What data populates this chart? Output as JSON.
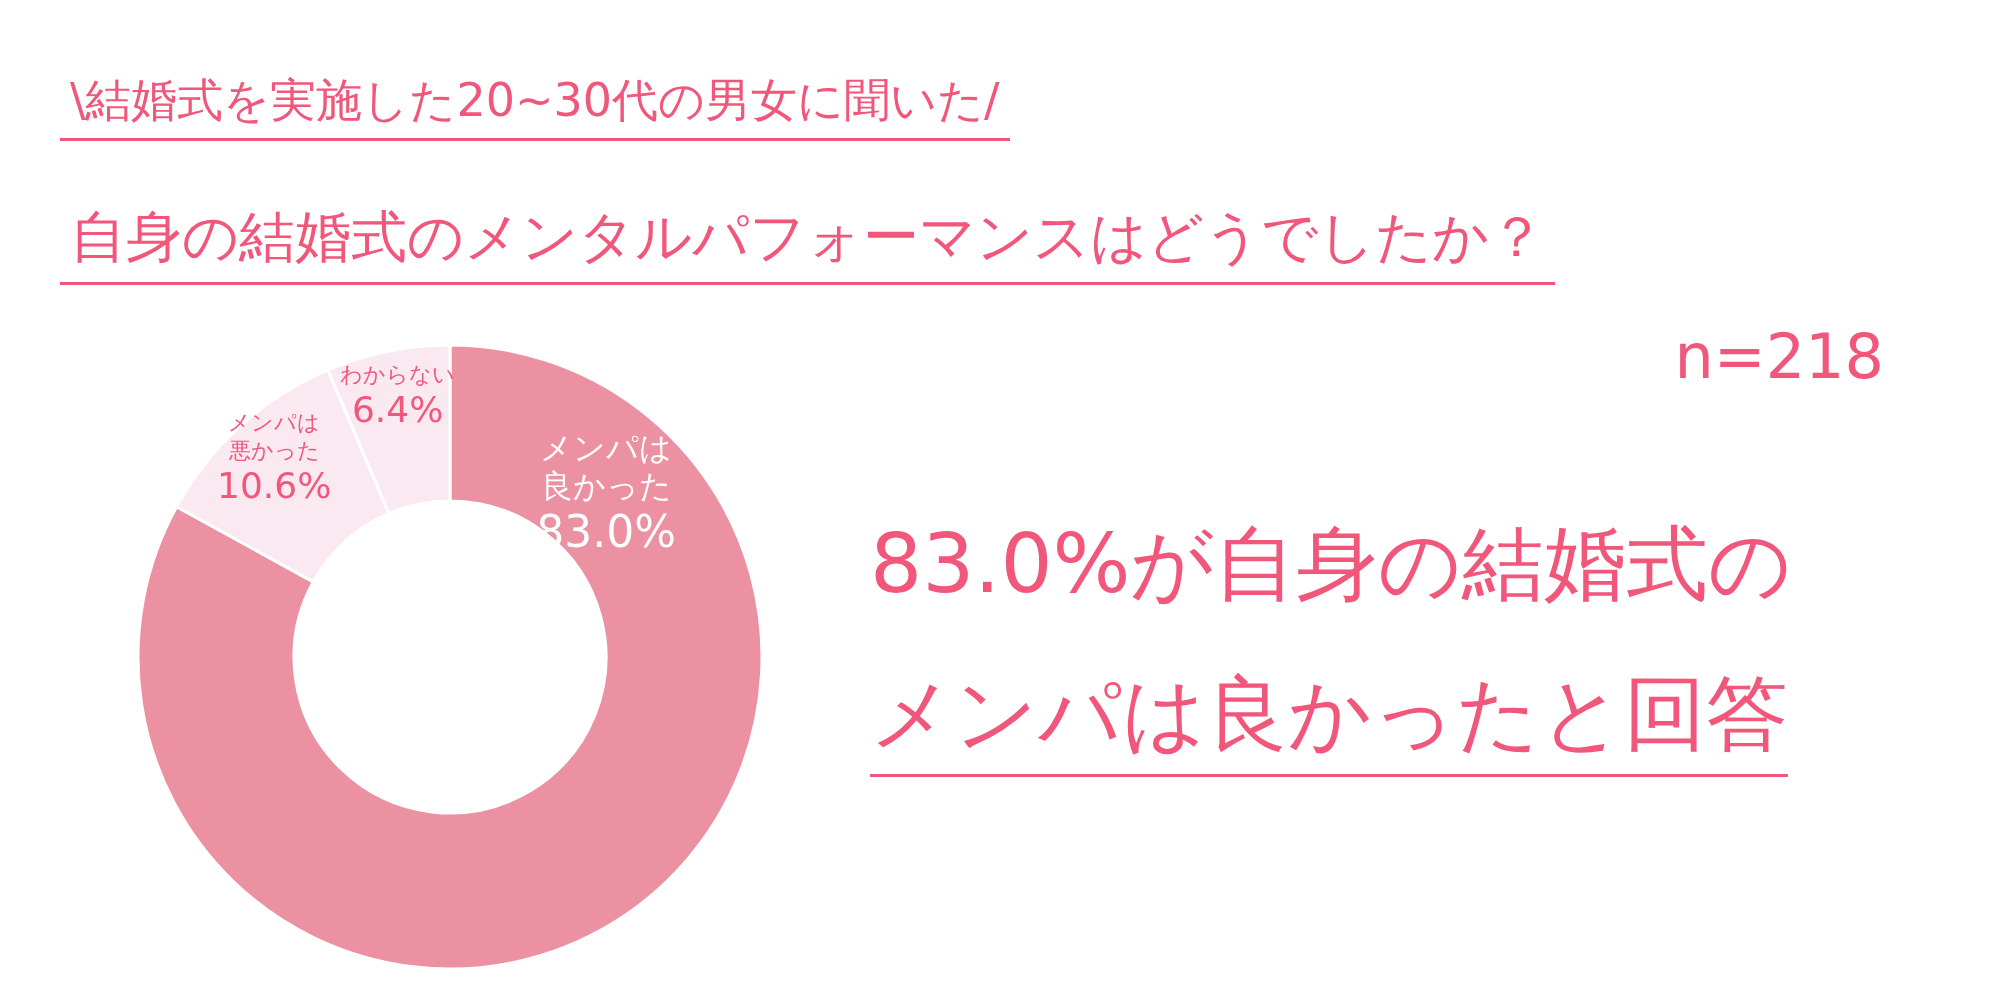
{
  "chart_data": {
    "type": "donut",
    "title": "自身の結婚式のメンタルパフォーマンスはどうでしたか？",
    "subtitle": "\\結婚式を実施した20~30代の男女に聞いた/",
    "categories": [
      "メンパは良かった",
      "メンパは悪かった",
      "わからない"
    ],
    "values": [
      83.0,
      10.6,
      6.4
    ],
    "value_labels": [
      "83.0%",
      "10.6%",
      "6.4%"
    ],
    "colors": [
      "#eb91a2",
      "#fbe9f1",
      "#fbe9f1"
    ],
    "legend": false,
    "annotations": [
      "n=218",
      "83.0%が自身の結婚式の",
      "メンパは良かったと回答"
    ]
  }
}
